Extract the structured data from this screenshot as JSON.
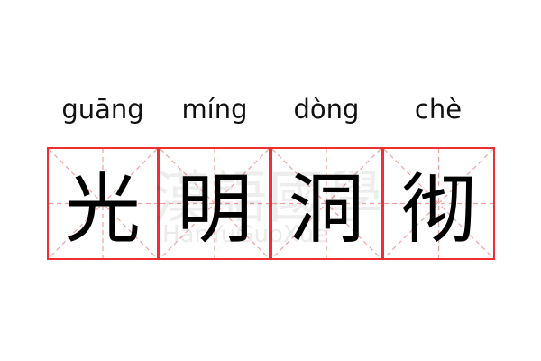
{
  "idiom": [
    {
      "hanzi": "光",
      "pinyin": "guāng"
    },
    {
      "hanzi": "明",
      "pinyin": "míng"
    },
    {
      "hanzi": "洞",
      "pinyin": "dòng"
    },
    {
      "hanzi": "彻",
      "pinyin": "chè"
    }
  ],
  "watermark": {
    "chinese": "漢語國學",
    "latin": "HanYuGuoXue"
  },
  "colors": {
    "grid_border": "#f03030",
    "guide_lines": "#f5a0a0",
    "text": "#000000"
  }
}
